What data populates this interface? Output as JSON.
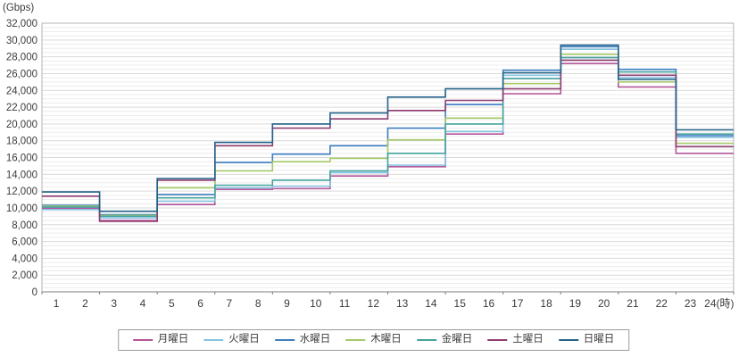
{
  "chart_data": {
    "type": "line",
    "subtype": "step",
    "unit_label": "(Gbps)",
    "x_axis": {
      "tick_labels": [
        "1",
        "2",
        "3",
        "4",
        "5",
        "6",
        "7",
        "8",
        "9",
        "10",
        "11",
        "12",
        "13",
        "14",
        "15",
        "16",
        "17",
        "18",
        "19",
        "20",
        "21",
        "22",
        "23",
        "24"
      ],
      "last_label_suffix": "(時)",
      "hours_per_step": 2
    },
    "y_axis": {
      "min": 0,
      "max": 32000,
      "label_step": 2000,
      "minor_grid_step": 500,
      "tick_labels": [
        "0",
        "2,000",
        "4,000",
        "6,000",
        "8,000",
        "10,000",
        "12,000",
        "14,000",
        "16,000",
        "18,000",
        "20,000",
        "22,000",
        "24,000",
        "26,000",
        "28,000",
        "30,000",
        "32,000"
      ]
    },
    "grid": {
      "major_color": "#d9d9d9",
      "minor_color": "#ececec",
      "border_color": "#b3b3b3",
      "axis_color": "#7d7d7d"
    },
    "legend_position": "bottom-center",
    "block_hour_ranges": [
      "1-2",
      "3-4",
      "5-6",
      "7-8",
      "9-10",
      "11-12",
      "13-14",
      "15-16",
      "17-18",
      "19-20",
      "21-22",
      "23-24"
    ],
    "series": [
      {
        "id": "monday",
        "name": "月曜日",
        "color": "#b4569b",
        "values": [
          9950,
          8500,
          10400,
          12200,
          12300,
          13800,
          14900,
          18800,
          23600,
          27200,
          24400,
          16500
        ]
      },
      {
        "id": "tuesday",
        "name": "火曜日",
        "color": "#85c3e3",
        "values": [
          9800,
          8800,
          10800,
          12400,
          12600,
          14200,
          15100,
          19100,
          25800,
          28900,
          25500,
          18400
        ]
      },
      {
        "id": "wednesday",
        "name": "水曜日",
        "color": "#3e7dc1",
        "values": [
          10300,
          9200,
          11600,
          15400,
          16400,
          17400,
          19500,
          22300,
          26400,
          29200,
          26500,
          18600
        ]
      },
      {
        "id": "thursday",
        "name": "木曜日",
        "color": "#a5c968",
        "values": [
          10200,
          9100,
          12400,
          14400,
          15500,
          15900,
          18100,
          20700,
          24800,
          28300,
          25000,
          17700
        ]
      },
      {
        "id": "friday",
        "name": "金曜日",
        "color": "#45a49e",
        "values": [
          10100,
          9000,
          11200,
          12700,
          13300,
          14400,
          16500,
          20000,
          25400,
          27900,
          26200,
          18800
        ]
      },
      {
        "id": "saturday",
        "name": "土曜日",
        "color": "#8f3c72",
        "values": [
          11400,
          8400,
          13300,
          17400,
          19500,
          20600,
          21600,
          22800,
          24200,
          27600,
          25800,
          17300
        ]
      },
      {
        "id": "sunday",
        "name": "日曜日",
        "color": "#246289",
        "values": [
          11900,
          9600,
          13500,
          17800,
          20000,
          21300,
          23200,
          24200,
          26100,
          29400,
          25300,
          19300
        ]
      }
    ]
  }
}
